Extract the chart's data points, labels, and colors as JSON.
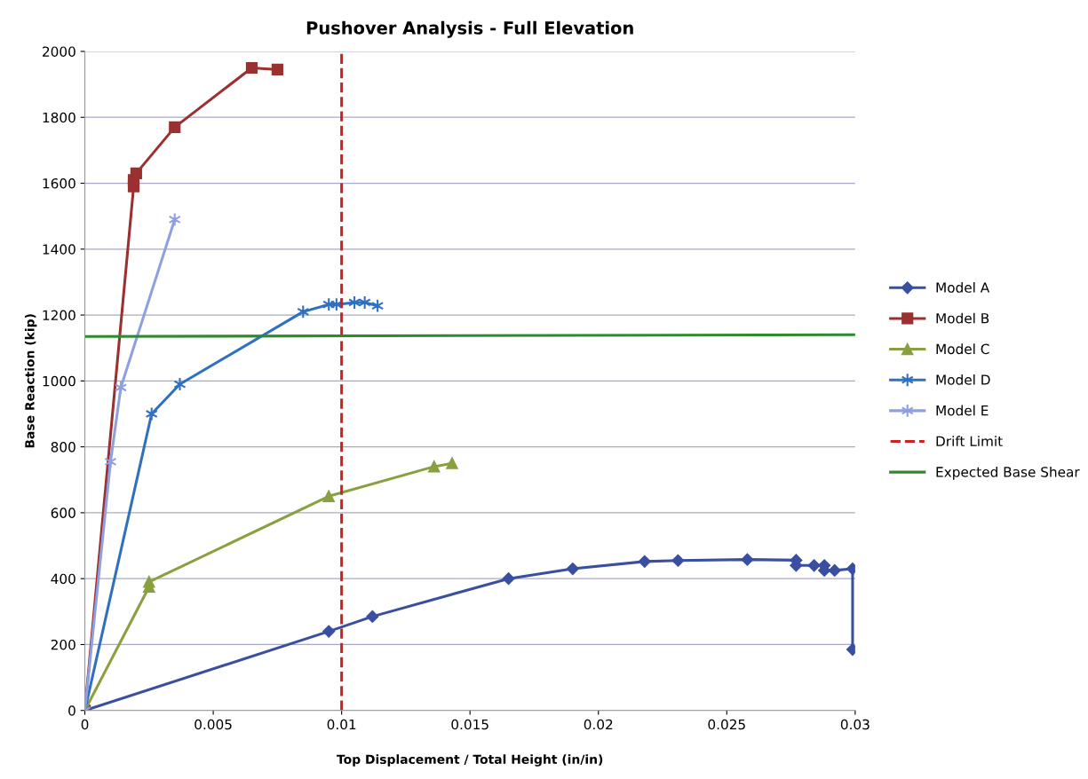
{
  "chart_data": {
    "type": "line",
    "title": "Pushover Analysis - Full Elevation",
    "xlabel": "Top Displacement / Total Height (in/in)",
    "ylabel": "Base Reaction (kip)",
    "xlim": [
      0,
      0.03
    ],
    "xticks": [
      0,
      0.005,
      0.01,
      0.015,
      0.02,
      0.025,
      0.03
    ],
    "ylim": [
      0,
      2000
    ],
    "yticks": [
      0,
      200,
      400,
      600,
      800,
      1000,
      1200,
      1400,
      1600,
      1800,
      2000
    ],
    "grid": "y",
    "legend": "right",
    "line_style": "solid",
    "series": [
      {
        "name": "Model A",
        "color": "#3a4fa0",
        "marker": "diamond",
        "x": [
          0,
          0.0095,
          0.0112,
          0.0165,
          0.019,
          0.0218,
          0.0231,
          0.0258,
          0.0277,
          0.0277,
          0.0284,
          0.0288,
          0.0288,
          0.0292,
          0.0299,
          0.0299
        ],
        "values": [
          0,
          240,
          285,
          400,
          430,
          452,
          455,
          458,
          456,
          440,
          440,
          440,
          425,
          425,
          430,
          185
        ]
      },
      {
        "name": "Model B",
        "color": "#9b3030",
        "marker": "square",
        "x": [
          0,
          0.0019,
          0.0019,
          0.002,
          0.0035,
          0.0065,
          0.0075
        ],
        "values": [
          0,
          1590,
          1610,
          1630,
          1770,
          1950,
          1945
        ]
      },
      {
        "name": "Model C",
        "color": "#8aa040",
        "marker": "triangle",
        "x": [
          0,
          0.0025,
          0.0025,
          0.0095,
          0.0136,
          0.0143
        ],
        "values": [
          0,
          375,
          390,
          650,
          740,
          750
        ]
      },
      {
        "name": "Model D",
        "color": "#3070c0",
        "marker": "cross",
        "x": [
          0,
          0.0026,
          0.0037,
          0.0085,
          0.0095,
          0.0098,
          0.0105,
          0.0109,
          0.0114
        ],
        "values": [
          0,
          900,
          990,
          1210,
          1232,
          1232,
          1238,
          1238,
          1228
        ]
      },
      {
        "name": "Model E",
        "color": "#8fa0e0",
        "marker": "cross",
        "x": [
          0,
          0.001,
          0.0014,
          0.0035
        ],
        "values": [
          0,
          755,
          980,
          1490
        ]
      },
      {
        "name": "Drift Limit",
        "color": "#d02020",
        "marker": "none",
        "line_style": "dashed",
        "x": [
          0.01,
          0.01
        ],
        "values": [
          0,
          2000
        ]
      },
      {
        "name": "Expected Base Shear",
        "color": "#2e8a2e",
        "marker": "none",
        "x": [
          0,
          0.03
        ],
        "values": [
          1135,
          1140
        ]
      }
    ]
  }
}
